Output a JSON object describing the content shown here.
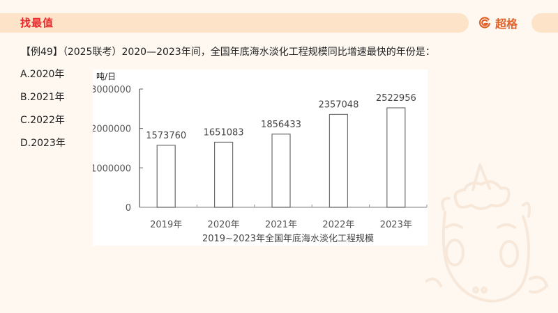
{
  "header": {
    "title": "找最值",
    "brand_name": "超格",
    "brand_icon": "g-logo-icon"
  },
  "question": {
    "text": "【例49】（2025联考）2020—2023年间，全国年底海水淡化工程规模同比增速最快的年份是："
  },
  "options": [
    {
      "label": "A.2020年"
    },
    {
      "label": "B.2021年"
    },
    {
      "label": "C.2022年"
    },
    {
      "label": "D.2023年"
    }
  ],
  "chart_data": {
    "type": "bar",
    "title": "",
    "caption": "2019~2023年全国年底海水淡化工程规模",
    "xlabel": "2019~2023年全国年底海水淡化工程规模",
    "ylabel": "吨/日",
    "categories": [
      "2019年",
      "2020年",
      "2021年",
      "2022年",
      "2023年"
    ],
    "values": [
      1573760,
      1651083,
      1856433,
      2357048,
      2522956
    ],
    "data_labels": [
      "1573760",
      "1651083",
      "1856433",
      "2357048",
      "2522956"
    ],
    "yticks": [
      "0",
      "1000000",
      "2000000",
      "3000000"
    ],
    "ylim": [
      0,
      3000000
    ],
    "grid": false,
    "legend": null,
    "bar_fill": "#ffffff",
    "bar_stroke": "#6b6b6b"
  },
  "colors": {
    "accent_red": "#e8282a",
    "brand_orange": "#e2622a",
    "band": "#fde3c8",
    "background": "#fef8f1"
  }
}
